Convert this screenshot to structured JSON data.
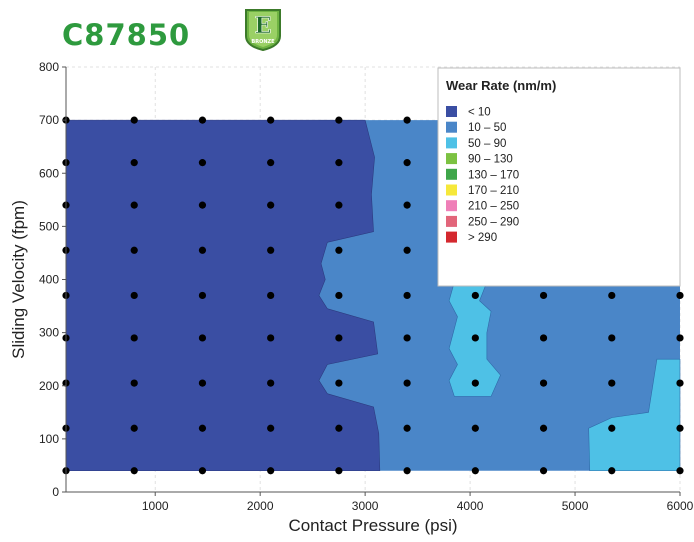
{
  "header": {
    "product_code": "C87850",
    "badge_letter": "E",
    "badge_subtext": "BRONZE"
  },
  "colors": {
    "title_green": "#2e9a3e",
    "band_lt10": "#3a4ea3",
    "band_10_50": "#4a86c8",
    "band_50_90": "#4ec1e6"
  },
  "chart_data": {
    "type": "heatmap",
    "title": "",
    "xlabel": "Contact Pressure (psi)",
    "ylabel": "Sliding Velocity (fpm)",
    "xlim": [
      150,
      6000
    ],
    "ylim": [
      0,
      800
    ],
    "x_ticks": [
      1000,
      2000,
      3000,
      4000,
      5000,
      6000
    ],
    "y_ticks": [
      0,
      100,
      200,
      300,
      400,
      500,
      600,
      700,
      800
    ],
    "grid": true,
    "legend": {
      "title": "Wear Rate (nm/m)",
      "placement": "top-right",
      "entries": [
        {
          "label": "<  10",
          "color": "#3a4ea3"
        },
        {
          "label": "10  –   50",
          "color": "#4a86c8"
        },
        {
          "label": "50  –   90",
          "color": "#4ec1e6"
        },
        {
          "label": "90  –  130",
          "color": "#7cc242"
        },
        {
          "label": "130  –  170",
          "color": "#3fa64a"
        },
        {
          "label": "170  –  210",
          "color": "#f6e83a"
        },
        {
          "label": "210  –  250",
          "color": "#ef7fb8"
        },
        {
          "label": "250  –  290",
          "color": "#e2657a"
        },
        {
          "label": "> 290",
          "color": "#d4282e"
        }
      ]
    },
    "sample_x": [
      150,
      800,
      1450,
      2100,
      2750,
      3400,
      4050,
      4700,
      5350,
      6000
    ],
    "sample_y": [
      40,
      120,
      205,
      290,
      370,
      455,
      540,
      620,
      700
    ],
    "points_omitted_by_legend": {
      "x_min": 4700,
      "y_min": 455
    },
    "regions": [
      {
        "band": "<10",
        "x_from": 150,
        "x_to": 3140,
        "y_from": 40,
        "y_to": 700,
        "boundary": [
          [
            3140,
            40
          ],
          [
            3130,
            110
          ],
          [
            3080,
            160
          ],
          [
            2640,
            185
          ],
          [
            2560,
            210
          ],
          [
            2640,
            240
          ],
          [
            3120,
            260
          ],
          [
            3080,
            320
          ],
          [
            2640,
            345
          ],
          [
            2560,
            370
          ],
          [
            2620,
            400
          ],
          [
            2580,
            430
          ],
          [
            2640,
            470
          ],
          [
            3080,
            490
          ],
          [
            3060,
            560
          ],
          [
            3090,
            630
          ],
          [
            3000,
            700
          ]
        ]
      },
      {
        "band": "10-50",
        "x_from": 2560,
        "x_to": 6000,
        "y_from": 40,
        "y_to": 700
      },
      {
        "band": "50-90",
        "polygons": [
          [
            [
              3850,
              180
            ],
            [
              4200,
              180
            ],
            [
              4290,
              220
            ],
            [
              4160,
              250
            ],
            [
              4160,
              300
            ],
            [
              4200,
              340
            ],
            [
              4090,
              360
            ],
            [
              4160,
              395
            ],
            [
              3850,
              395
            ],
            [
              3800,
              360
            ],
            [
              3880,
              330
            ],
            [
              3840,
              300
            ],
            [
              3800,
              270
            ],
            [
              3880,
              240
            ],
            [
              3800,
              210
            ]
          ],
          [
            [
              5140,
              40
            ],
            [
              6000,
              40
            ],
            [
              6000,
              250
            ],
            [
              5780,
              250
            ],
            [
              5700,
              150
            ],
            [
              5350,
              140
            ],
            [
              5130,
              120
            ]
          ]
        ]
      }
    ]
  }
}
